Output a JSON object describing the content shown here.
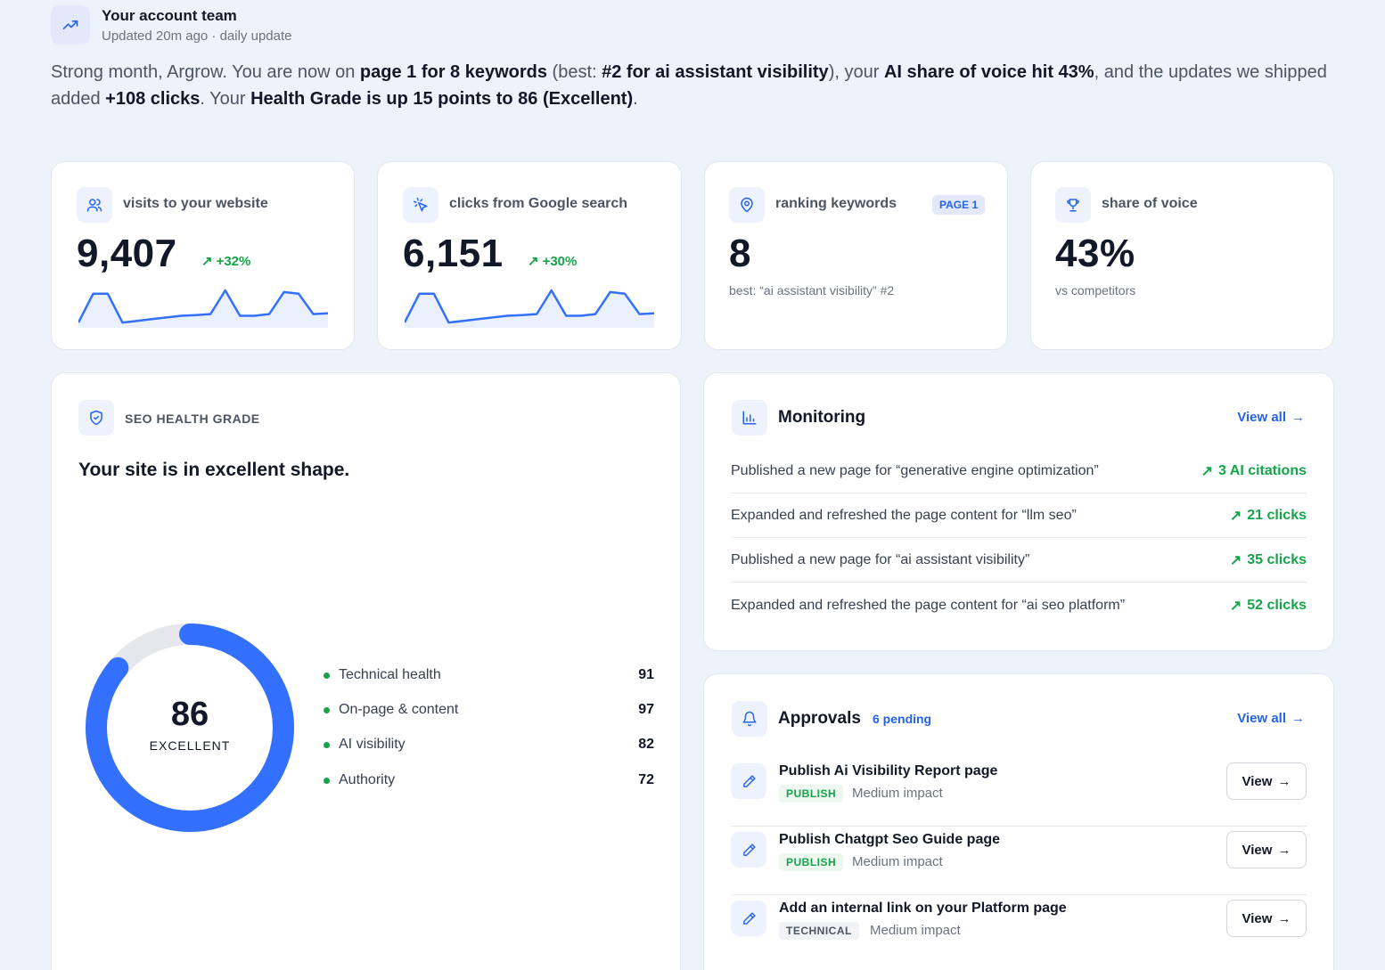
{
  "header": {
    "title": "Your account team",
    "subtitle": "Updated 20m ago · daily update",
    "icon": "trending-up-icon"
  },
  "summary": {
    "p1": "Strong month, Argrow. You are now on ",
    "b1": "page 1 for 8 keywords",
    "p2": " (best: ",
    "b2": "#2 for ai assistant visibility",
    "p3": "), your ",
    "b3": "AI share of voice hit 43%",
    "p4": ", and the updates we shipped added ",
    "b4": "+108 clicks",
    "p5": ". Your ",
    "b5": "Health Grade is up 15 points to 86 (Excellent)",
    "p6": "."
  },
  "stats": [
    {
      "icon": "users-icon",
      "label": "visits to your website",
      "value": "9,407",
      "delta": "+32%",
      "spark": [
        0.05,
        0.9,
        0.9,
        0.05,
        0.1,
        0.15,
        0.2,
        0.25,
        0.27,
        0.3,
        1.0,
        0.25,
        0.25,
        0.3,
        0.95,
        0.9,
        0.3,
        0.32
      ]
    },
    {
      "icon": "cursor-click-icon",
      "label": "clicks from Google search",
      "value": "6,151",
      "delta": "+30%",
      "spark": [
        0.05,
        0.9,
        0.9,
        0.05,
        0.1,
        0.15,
        0.2,
        0.25,
        0.27,
        0.3,
        1.0,
        0.25,
        0.25,
        0.3,
        0.95,
        0.9,
        0.3,
        0.32
      ]
    },
    {
      "icon": "map-pin-icon",
      "label": "ranking keywords",
      "badge": "PAGE 1",
      "value": "8",
      "note": "best: “ai assistant visibility” #2"
    },
    {
      "icon": "trophy-icon",
      "label": "share of voice",
      "value": "43%",
      "note": "vs competitors"
    }
  ],
  "health": {
    "section_label": "SEO HEALTH GRADE",
    "headline": "Your site is in excellent shape.",
    "score": "86",
    "score_value": 86,
    "grade": "EXCELLENT",
    "ring_color": "#3370ff",
    "track_color": "#e5e7eb",
    "items": [
      {
        "label": "Technical health",
        "value": "91"
      },
      {
        "label": "On-page & content",
        "value": "97"
      },
      {
        "label": "AI visibility",
        "value": "82"
      },
      {
        "label": "Authority",
        "value": "72"
      }
    ]
  },
  "monitoring": {
    "title": "Monitoring",
    "view_all": "View all",
    "rows": [
      {
        "text": "Published a new page for “generative engine optimization”",
        "metric": "3 AI citations"
      },
      {
        "text": "Expanded and refreshed the page content for “llm seo”",
        "metric": "21 clicks"
      },
      {
        "text": "Published a new page for “ai assistant visibility”",
        "metric": "35 clicks"
      },
      {
        "text": "Expanded and refreshed the page content for “ai seo platform”",
        "metric": "52 clicks"
      }
    ]
  },
  "approvals": {
    "title": "Approvals",
    "pending": "6 pending",
    "view_all": "View all",
    "rows": [
      {
        "title": "Publish Ai Visibility Report page",
        "tag": "PUBLISH",
        "impact": "Medium impact",
        "button": "View"
      },
      {
        "title": "Publish Chatgpt Seo Guide page",
        "tag": "PUBLISH",
        "impact": "Medium impact",
        "button": "View"
      },
      {
        "title": "Add an internal link on your Platform page",
        "tag": "TECHNICAL",
        "impact": "Medium impact",
        "button": "View"
      }
    ]
  },
  "colors": {
    "accent": "#2563eb",
    "positive": "#16a34a",
    "background": "#eef2fa"
  }
}
